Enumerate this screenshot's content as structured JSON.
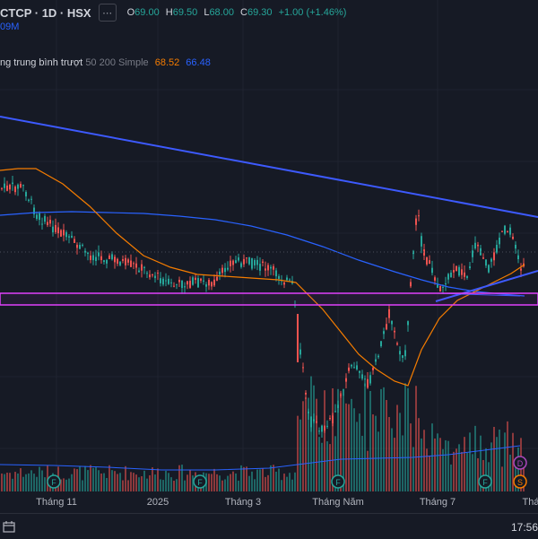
{
  "legend": {
    "symbol": "CTCP · 1D · HSX",
    "ohlc": [
      {
        "label": "O",
        "value": "69.00"
      },
      {
        "label": "H",
        "value": "69.50"
      },
      {
        "label": "L",
        "value": "68.00"
      },
      {
        "label": "C",
        "value": "69.30"
      },
      {
        "label": "",
        "value": "+1.00 (+1.46%)"
      }
    ],
    "volume": "09M"
  },
  "ma": {
    "name": "ng trung bình trượt",
    "params": "50 200 Simple",
    "value1": "68.52",
    "value2": "66.48"
  },
  "xaxis": [
    "Tháng 11",
    "2025",
    "Tháng 3",
    "Tháng Năm",
    "Tháng 7",
    "Thá"
  ],
  "time": "17:56",
  "markers": {
    "f": "F",
    "d": "D",
    "s": "S"
  },
  "colors": {
    "background": "#161a25",
    "up": "#26a69a",
    "down": "#ef5350",
    "ma50": "#f57c00",
    "ma200": "#2962ff",
    "trendline": "#3d5afe",
    "zone": "#e040fb"
  },
  "icons": {
    "range": "calendar-range-icon",
    "settings": "gear-icon"
  }
}
